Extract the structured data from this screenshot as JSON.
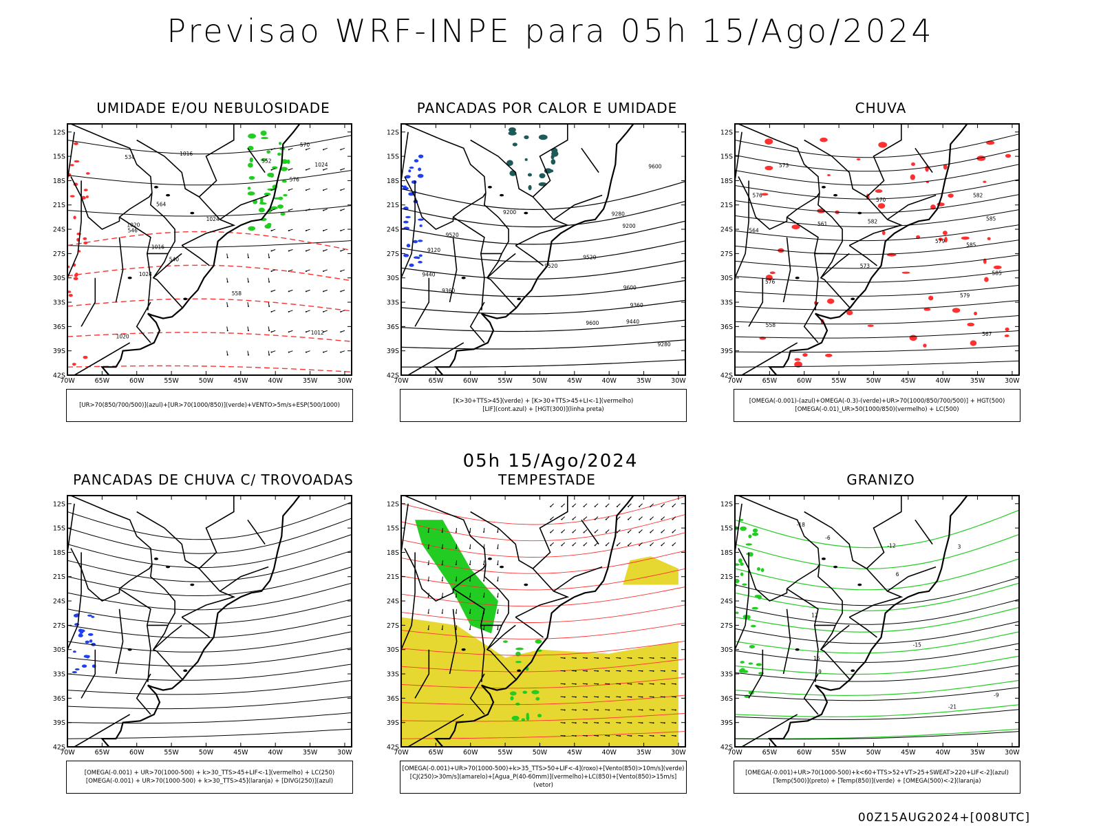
{
  "header": {
    "title": "Previsao WRF-INPE  para 05h 15/Ago/2024",
    "subtitle": "05h 15/Ago/2024",
    "footer": "00Z15AUG2024+[008UTC]"
  },
  "axes": {
    "lat_labels": [
      "12S",
      "15S",
      "18S",
      "21S",
      "24S",
      "27S",
      "30S",
      "33S",
      "36S",
      "39S",
      "42S"
    ],
    "lon_labels": [
      "70W",
      "65W",
      "60W",
      "55W",
      "50W",
      "45W",
      "40W",
      "35W",
      "30W"
    ]
  },
  "colors": {
    "blue": "#1f3ff0",
    "green": "#22cc22",
    "red": "#ff3030",
    "yellow": "#e6d830",
    "teal": "#1e5a58",
    "black": "#000000"
  },
  "panels": [
    {
      "title": "UMIDADE E/OU NEBULOSIDADE",
      "legend": [
        "[UR>70(850/700/500)](azul)+[UR>70(1000/850)](verde)+VENTO>5m/s+ESP(500/1000)"
      ],
      "contour_labels": [
        "1012",
        "1016",
        "1020",
        "1024",
        "1024",
        "1024",
        "1020",
        "1016",
        "552",
        "564",
        "570",
        "576",
        "546",
        "540",
        "558",
        "534"
      ]
    },
    {
      "title": "PANCADAS POR CALOR E UMIDADE",
      "legend": [
        "[K>30+TTS>45](verde) + [K>30+TTS>45+LI<-1](vermelho)",
        "[LIF](cont.azul) + [HGT(300)](linha preta)"
      ],
      "contour_labels": [
        "9600",
        "9600",
        "9520",
        "9520",
        "9520",
        "9440",
        "9440",
        "9360",
        "9360",
        "9280",
        "9280",
        "9200",
        "9200",
        "9120",
        "9600"
      ]
    },
    {
      "title": "CHUVA",
      "legend": [
        "[OMEGA(-0.001)-(azul)+OMEGA(-0.3)-(verde)+UR>70(1000/850/700/500)] + HGT(500)",
        "[OMEGA(-0.01)_UR>50(1000/850)(vermelho) + LC(500)"
      ],
      "contour_labels": [
        "585",
        "585",
        "582",
        "579",
        "576",
        "573",
        "570",
        "567",
        "564",
        "561",
        "558",
        "585",
        "582",
        "579",
        "576",
        "573"
      ]
    },
    {
      "title": "PANCADAS DE CHUVA C/ TROVOADAS",
      "legend": [
        "[OMEGA(-0.001) + UR>70(1000-500) + k>30_TTS>45+LIF<-1](vermelho) + LC(250)",
        "[OMEGA(-0.001) + UR>70(1000-500) + k>30_TTS>45](laranja) + [DIVG(250)](azul)"
      ],
      "contour_labels": []
    },
    {
      "title": "TEMPESTADE",
      "legend": [
        "[OMEGA(-0.001)+UR>70(1000-500)+k>35_TTS>50+LIF<-4](roxo)+[Vento(850)>10m/s](verde)",
        "[CJ(250)>30m/s](amarelo)+[Agua_P(40-60mm)](vermelho)+LC(850)+[Vento(850)>15m/s](vetor)"
      ],
      "contour_labels": []
    },
    {
      "title": "GRANIZO",
      "legend": [
        "[OMEGA(-0.001)+UR>70(1000-500)+k<60+TTS>52+VT>25+SWEAT>220+LIF<-2](azul)",
        "[Temp(500)](preto) + [Temp(850)](verde) + [OMEGA(500)<-2](laranja)"
      ],
      "contour_labels": [
        "-9",
        "-12",
        "-15",
        "-18",
        "-21",
        "-6",
        "3",
        "6",
        "9",
        "12",
        "15"
      ]
    }
  ]
}
